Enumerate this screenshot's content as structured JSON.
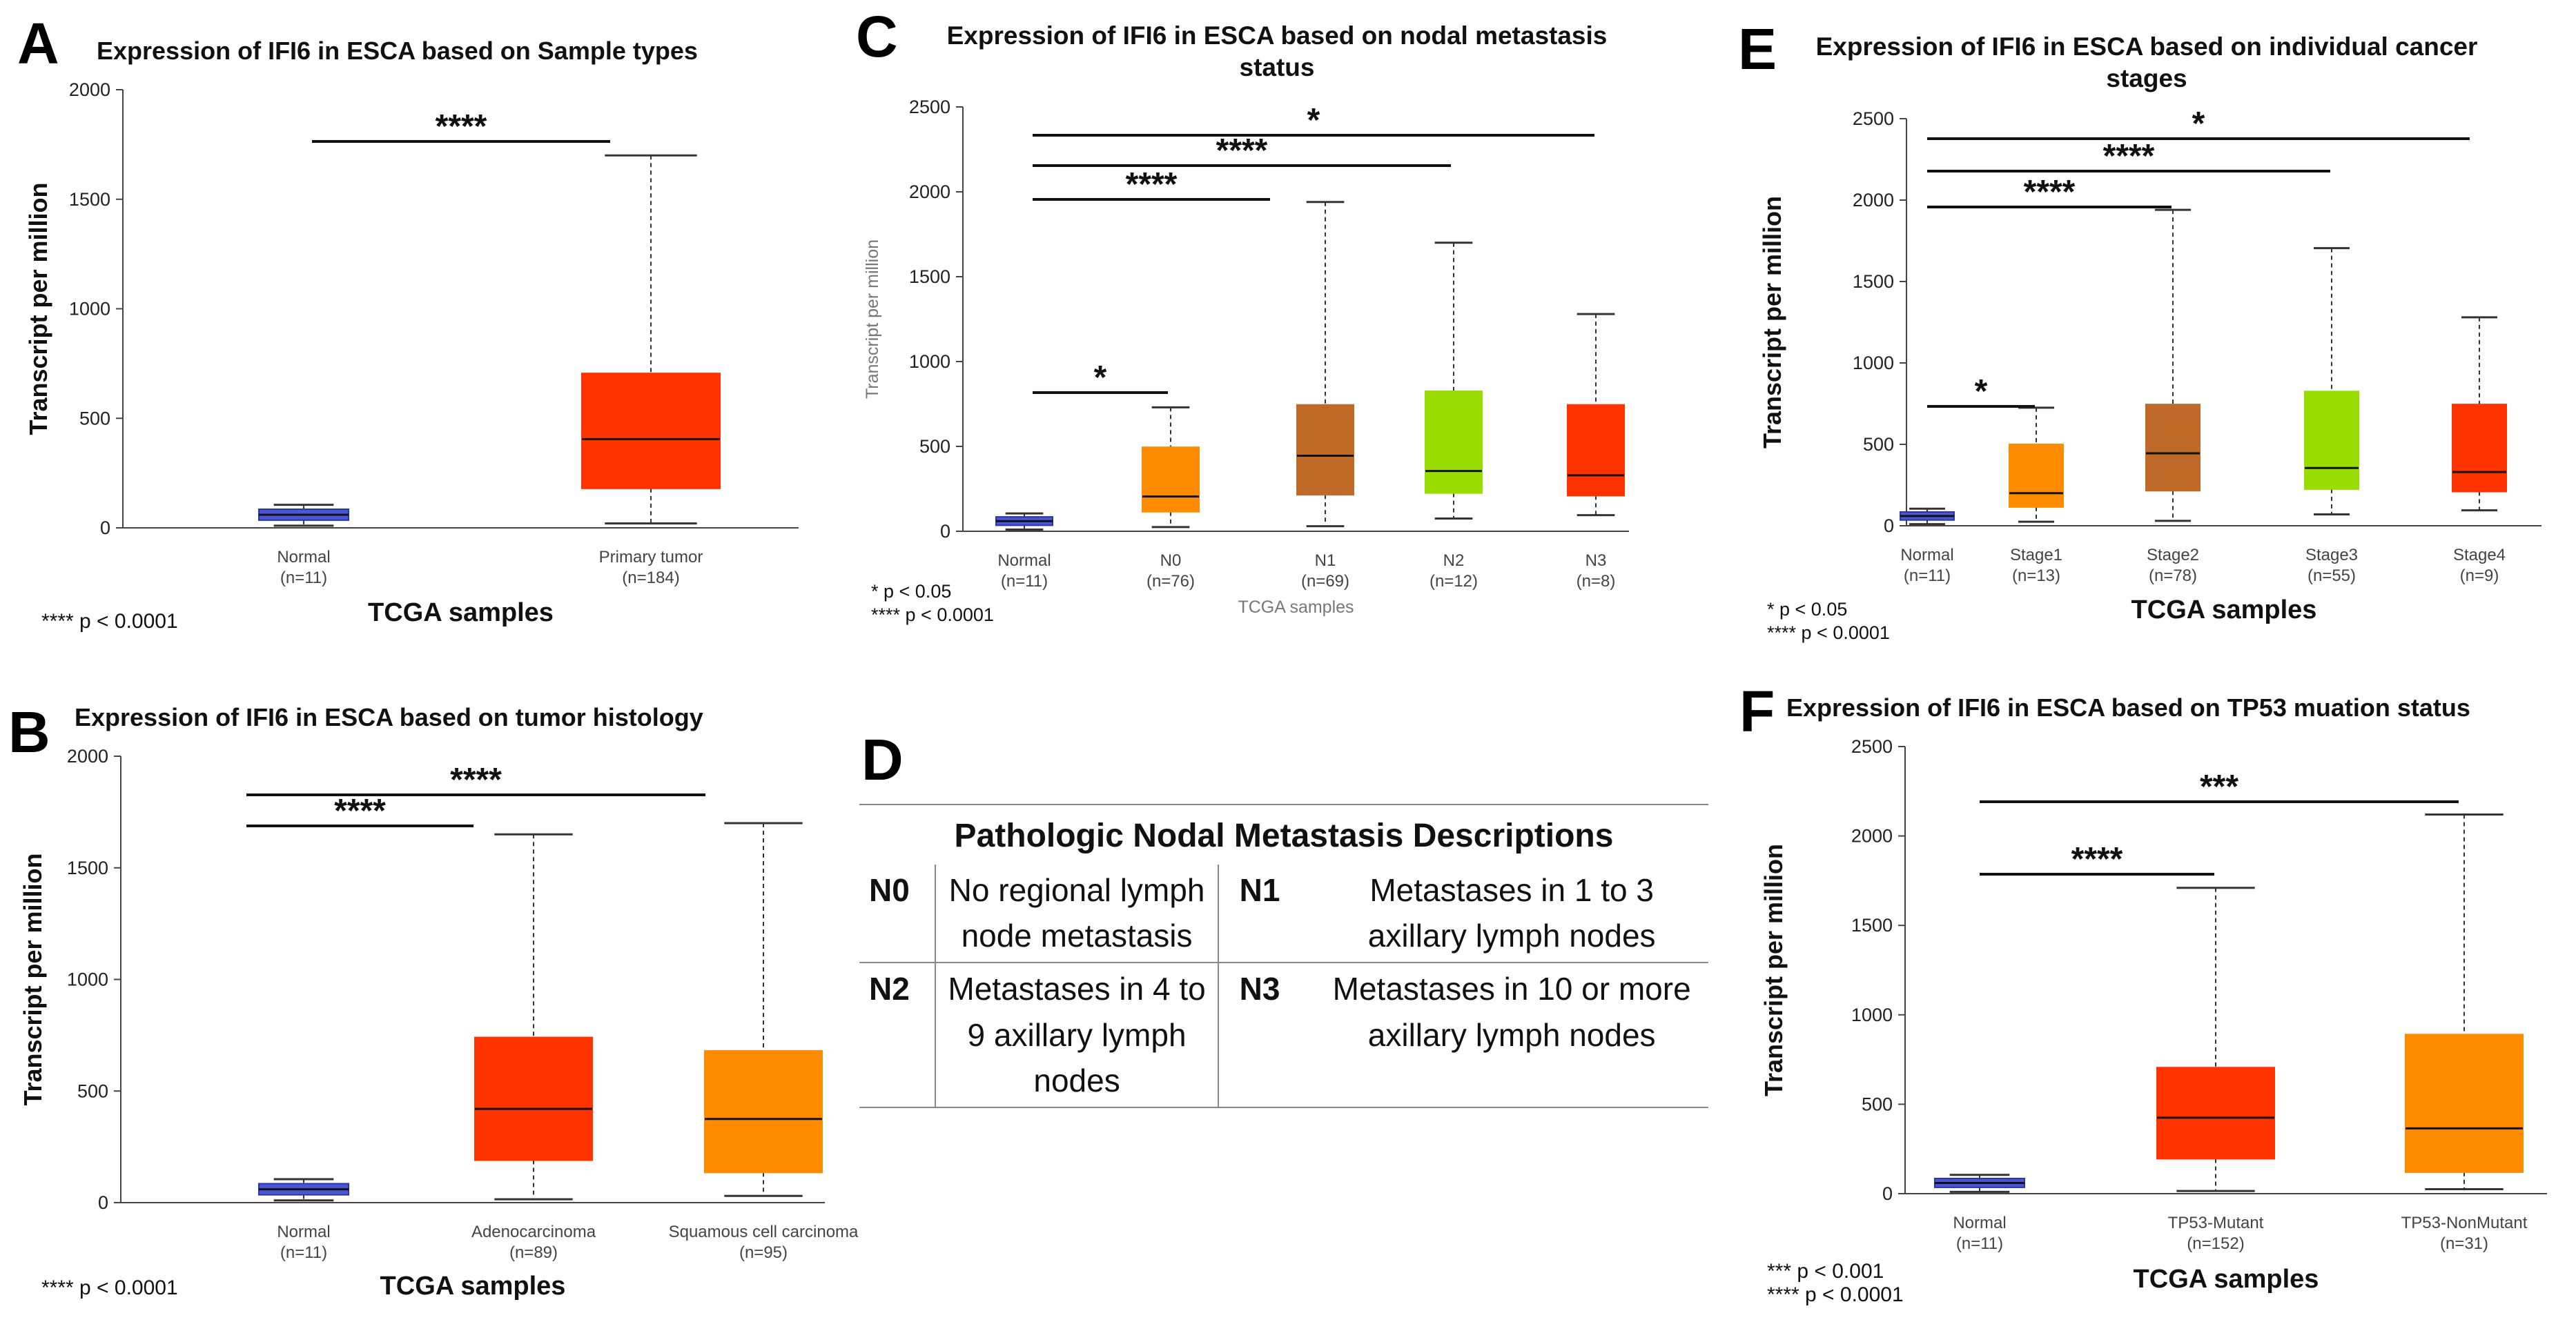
{
  "panel_letters": {
    "A": "A",
    "B": "B",
    "C": "C",
    "D": "D",
    "E": "E",
    "F": "F"
  },
  "table_d": {
    "title": "Pathologic Nodal Metastasis Descriptions",
    "rows": [
      {
        "code_a": "N0",
        "desc_a": "No regional lymph node metastasis",
        "code_b": "N1",
        "desc_b": "Metastases in 1 to 3 axillary lymph nodes"
      },
      {
        "code_a": "N2",
        "desc_a": "Metastases in 4 to 9 axillary lymph nodes",
        "code_b": "N3",
        "desc_b": "Metastases in 10 or more axillary lymph nodes"
      }
    ]
  },
  "chart_data": [
    {
      "panel": "A",
      "type": "box",
      "title": "Expression of IFI6 in ESCA based on Sample types",
      "xlabel": "TCGA samples",
      "ylabel": "Transcript per million",
      "ylim": [
        0,
        2000
      ],
      "yticks": [
        0,
        500,
        1000,
        1500,
        2000
      ],
      "categories": [
        {
          "name": "Normal",
          "n": "(n=11)",
          "min": 10,
          "q1": 35,
          "median": 60,
          "q3": 85,
          "max": 105,
          "color": "#4a56d6"
        },
        {
          "name": "Primary tumor",
          "n": "(n=184)",
          "min": 20,
          "q1": 180,
          "median": 405,
          "q3": 705,
          "max": 1700,
          "color": "#ff3300"
        }
      ],
      "significance": [
        {
          "from": 0,
          "to": 1,
          "label": "****",
          "level": 0
        }
      ],
      "legend": [
        "**** p < 0.0001"
      ]
    },
    {
      "panel": "B",
      "type": "box",
      "title": "Expression of IFI6 in ESCA based on tumor histology",
      "xlabel": "TCGA samples",
      "ylabel": "Transcript per million",
      "ylim": [
        0,
        2000
      ],
      "yticks": [
        0,
        500,
        1000,
        1500,
        2000
      ],
      "categories": [
        {
          "name": "Normal",
          "n": "(n=11)",
          "min": 10,
          "q1": 35,
          "median": 60,
          "q3": 85,
          "max": 105,
          "color": "#4a56d6"
        },
        {
          "name": "Adenocarcinoma",
          "n": "(n=89)",
          "min": 15,
          "q1": 190,
          "median": 420,
          "q3": 740,
          "max": 1650,
          "color": "#ff3300"
        },
        {
          "name": "Squamous cell carcinoma",
          "n": "(n=95)",
          "min": 30,
          "q1": 135,
          "median": 375,
          "q3": 680,
          "max": 1700,
          "color": "#ff8c00"
        }
      ],
      "significance": [
        {
          "from": 0,
          "to": 1,
          "label": "****",
          "level": 0
        },
        {
          "from": 0,
          "to": 2,
          "label": "****",
          "level": 1
        }
      ],
      "legend": [
        "**** p < 0.0001"
      ]
    },
    {
      "panel": "C",
      "type": "box",
      "title": "Expression of IFI6 in ESCA based on nodal metastasis",
      "title2": "status",
      "xlabel": "TCGA samples",
      "ylabel": "Transcript per million",
      "ylim": [
        0,
        2500
      ],
      "yticks": [
        0,
        500,
        1000,
        1500,
        2000,
        2500
      ],
      "categories": [
        {
          "name": "Normal",
          "n": "(n=11)",
          "min": 10,
          "q1": 35,
          "median": 60,
          "q3": 85,
          "max": 105,
          "color": "#4a56d6"
        },
        {
          "name": "N0",
          "n": "(n=76)",
          "min": 25,
          "q1": 115,
          "median": 205,
          "q3": 495,
          "max": 730,
          "color": "#ff8c00"
        },
        {
          "name": "N1",
          "n": "(n=69)",
          "min": 30,
          "q1": 215,
          "median": 445,
          "q3": 745,
          "max": 1940,
          "color": "#c06a2a"
        },
        {
          "name": "N2",
          "n": "(n=12)",
          "min": 75,
          "q1": 225,
          "median": 355,
          "q3": 825,
          "max": 1700,
          "color": "#99dd00"
        },
        {
          "name": "N3",
          "n": "(n=8)",
          "min": 95,
          "q1": 210,
          "median": 330,
          "q3": 745,
          "max": 1280,
          "color": "#ff3300"
        }
      ],
      "significance": [
        {
          "from": 0,
          "to": 1,
          "label": "*",
          "level": 0
        },
        {
          "from": 0,
          "to": 2,
          "label": "****",
          "level": 1
        },
        {
          "from": 0,
          "to": 3,
          "label": "****",
          "level": 2
        },
        {
          "from": 0,
          "to": 4,
          "label": "*",
          "level": 3
        }
      ],
      "legend": [
        "* p < 0.05",
        "**** p < 0.0001"
      ]
    },
    {
      "panel": "E",
      "type": "box",
      "title": "Expression of IFI6 in ESCA based on individual cancer",
      "title2": "stages",
      "xlabel": "TCGA samples",
      "ylabel": "Transcript per million",
      "ylim": [
        0,
        2500
      ],
      "yticks": [
        0,
        500,
        1000,
        1500,
        2000,
        2500
      ],
      "categories": [
        {
          "name": "Normal",
          "n": "(n=11)",
          "min": 10,
          "q1": 35,
          "median": 60,
          "q3": 85,
          "max": 105,
          "color": "#4a56d6"
        },
        {
          "name": "Stage1",
          "n": "(n=13)",
          "min": 25,
          "q1": 115,
          "median": 200,
          "q3": 500,
          "max": 725,
          "color": "#ff8c00"
        },
        {
          "name": "Stage2",
          "n": "(n=78)",
          "min": 30,
          "q1": 215,
          "median": 445,
          "q3": 745,
          "max": 1940,
          "color": "#c06a2a"
        },
        {
          "name": "Stage3",
          "n": "(n=55)",
          "min": 70,
          "q1": 225,
          "median": 355,
          "q3": 825,
          "max": 1705,
          "color": "#99dd00"
        },
        {
          "name": "Stage4",
          "n": "(n=9)",
          "min": 95,
          "q1": 210,
          "median": 330,
          "q3": 745,
          "max": 1280,
          "color": "#ff3300"
        }
      ],
      "significance": [
        {
          "from": 0,
          "to": 1,
          "label": "*",
          "level": 0
        },
        {
          "from": 0,
          "to": 2,
          "label": "****",
          "level": 1
        },
        {
          "from": 0,
          "to": 3,
          "label": "****",
          "level": 2
        },
        {
          "from": 0,
          "to": 4,
          "label": "*",
          "level": 3
        }
      ],
      "legend": [
        "* p < 0.05",
        "**** p < 0.0001"
      ]
    },
    {
      "panel": "F",
      "type": "box",
      "title": "Expression of IFI6 in ESCA based on TP53 muation status",
      "xlabel": "TCGA samples",
      "ylabel": "Transcript per million",
      "ylim": [
        0,
        2500
      ],
      "yticks": [
        0,
        500,
        1000,
        1500,
        2000,
        2500
      ],
      "categories": [
        {
          "name": "Normal",
          "n": "(n=11)",
          "min": 10,
          "q1": 35,
          "median": 60,
          "q3": 85,
          "max": 105,
          "color": "#4a56d6"
        },
        {
          "name": "TP53-Mutant",
          "n": "(n=152)",
          "min": 15,
          "q1": 195,
          "median": 425,
          "q3": 705,
          "max": 1710,
          "color": "#ff3300"
        },
        {
          "name": "TP53-NonMutant",
          "n": "(n=31)",
          "min": 25,
          "q1": 120,
          "median": 365,
          "q3": 890,
          "max": 2120,
          "color": "#ff8c00"
        }
      ],
      "significance": [
        {
          "from": 0,
          "to": 1,
          "label": "****",
          "level": 0
        },
        {
          "from": 0,
          "to": 2,
          "label": "***",
          "level": 1
        }
      ],
      "legend": [
        "*** p < 0.001",
        "**** p < 0.0001"
      ]
    }
  ]
}
